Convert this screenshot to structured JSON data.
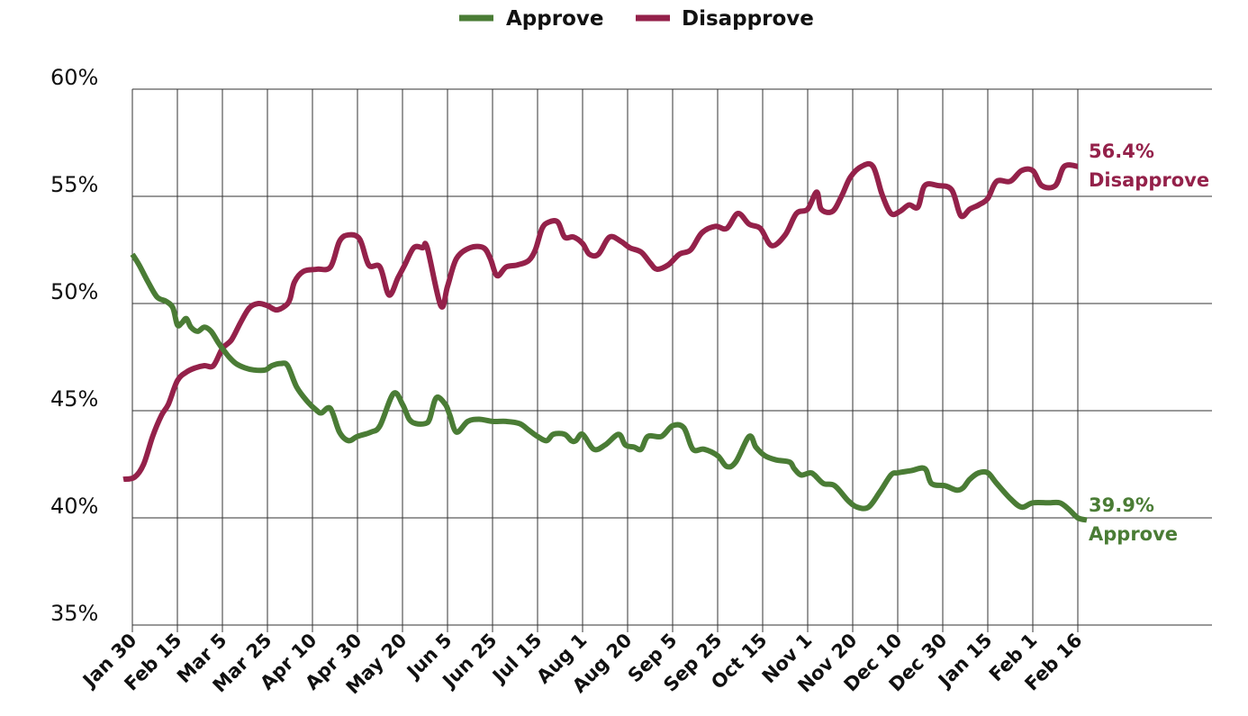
{
  "chart_data": {
    "type": "line",
    "title": "",
    "xlabel": "",
    "ylabel": "",
    "ylim": [
      35,
      60
    ],
    "yticks": [
      60,
      55,
      50,
      45,
      40,
      35
    ],
    "ytick_labels": [
      "60%",
      "55%",
      "50%",
      "45%",
      "40%",
      "35%"
    ],
    "categories": [
      "Jan 30",
      "Feb 15",
      "Mar 5",
      "Mar 25",
      "Apr 10",
      "Apr 30",
      "May 20",
      "Jun 5",
      "Jun 25",
      "Jul 15",
      "Aug 1",
      "Aug 20",
      "Sep 5",
      "Sep 25",
      "Oct 15",
      "Nov 1",
      "Nov 20",
      "Dec 10",
      "Dec 30",
      "Jan 15",
      "Feb 1",
      "Feb 16"
    ],
    "grid": true,
    "legend_position": "top-center",
    "series": [
      {
        "name": "Approve",
        "color": "#4a7c35",
        "end_value_label": "39.9%",
        "end_name_label": "Approve",
        "points": [
          [
            0,
            52.3
          ],
          [
            0.15,
            51.8
          ],
          [
            0.35,
            51.0
          ],
          [
            0.55,
            50.3
          ],
          [
            0.75,
            50.1
          ],
          [
            0.9,
            49.8
          ],
          [
            1.0,
            49.0
          ],
          [
            1.1,
            49.1
          ],
          [
            1.2,
            49.3
          ],
          [
            1.3,
            48.9
          ],
          [
            1.45,
            48.7
          ],
          [
            1.6,
            48.9
          ],
          [
            1.75,
            48.7
          ],
          [
            1.9,
            48.2
          ],
          [
            2.0,
            47.9
          ],
          [
            2.15,
            47.5
          ],
          [
            2.3,
            47.2
          ],
          [
            2.5,
            47.0
          ],
          [
            2.7,
            46.9
          ],
          [
            2.95,
            46.9
          ],
          [
            3.1,
            47.1
          ],
          [
            3.3,
            47.2
          ],
          [
            3.45,
            47.1
          ],
          [
            3.65,
            46.1
          ],
          [
            3.9,
            45.4
          ],
          [
            4.1,
            45.0
          ],
          [
            4.2,
            44.9
          ],
          [
            4.4,
            45.1
          ],
          [
            4.6,
            44.0
          ],
          [
            4.8,
            43.6
          ],
          [
            5.0,
            43.8
          ],
          [
            5.3,
            44.0
          ],
          [
            5.5,
            44.3
          ],
          [
            5.8,
            45.8
          ],
          [
            6.0,
            45.3
          ],
          [
            6.15,
            44.6
          ],
          [
            6.3,
            44.4
          ],
          [
            6.5,
            44.4
          ],
          [
            6.6,
            44.6
          ],
          [
            6.75,
            45.6
          ],
          [
            6.95,
            45.3
          ],
          [
            7.05,
            44.8
          ],
          [
            7.2,
            44.0
          ],
          [
            7.45,
            44.5
          ],
          [
            7.7,
            44.6
          ],
          [
            8.0,
            44.5
          ],
          [
            8.3,
            44.5
          ],
          [
            8.6,
            44.4
          ],
          [
            8.8,
            44.1
          ],
          [
            9.0,
            43.8
          ],
          [
            9.2,
            43.6
          ],
          [
            9.35,
            43.9
          ],
          [
            9.6,
            43.9
          ],
          [
            9.75,
            43.6
          ],
          [
            9.85,
            43.6
          ],
          [
            10.0,
            43.9
          ],
          [
            10.25,
            43.2
          ],
          [
            10.5,
            43.4
          ],
          [
            10.8,
            43.9
          ],
          [
            10.95,
            43.4
          ],
          [
            11.15,
            43.3
          ],
          [
            11.3,
            43.2
          ],
          [
            11.45,
            43.8
          ],
          [
            11.75,
            43.8
          ],
          [
            12.0,
            44.3
          ],
          [
            12.25,
            44.2
          ],
          [
            12.45,
            43.2
          ],
          [
            12.7,
            43.2
          ],
          [
            13.0,
            42.9
          ],
          [
            13.2,
            42.4
          ],
          [
            13.4,
            42.6
          ],
          [
            13.7,
            43.8
          ],
          [
            13.85,
            43.3
          ],
          [
            14.05,
            42.9
          ],
          [
            14.3,
            42.7
          ],
          [
            14.6,
            42.6
          ],
          [
            14.7,
            42.3
          ],
          [
            14.85,
            42.0
          ],
          [
            15.05,
            42.1
          ],
          [
            15.15,
            42.0
          ],
          [
            15.35,
            41.6
          ],
          [
            15.6,
            41.5
          ],
          [
            15.9,
            40.8
          ],
          [
            16.1,
            40.5
          ],
          [
            16.35,
            40.5
          ],
          [
            16.6,
            41.2
          ],
          [
            16.85,
            42.0
          ],
          [
            17.0,
            42.1
          ],
          [
            17.3,
            42.2
          ],
          [
            17.6,
            42.3
          ],
          [
            17.75,
            41.6
          ],
          [
            18.05,
            41.5
          ],
          [
            18.3,
            41.3
          ],
          [
            18.45,
            41.4
          ],
          [
            18.6,
            41.8
          ],
          [
            18.8,
            42.1
          ],
          [
            19.0,
            42.1
          ],
          [
            19.2,
            41.6
          ],
          [
            19.5,
            40.9
          ],
          [
            19.75,
            40.5
          ],
          [
            20.0,
            40.7
          ],
          [
            20.35,
            40.7
          ],
          [
            20.6,
            40.7
          ],
          [
            20.8,
            40.4
          ],
          [
            21.0,
            40.0
          ],
          [
            21.2,
            39.9
          ]
        ]
      },
      {
        "name": "Disapprove",
        "color": "#94214a",
        "end_value_label": "56.4%",
        "end_name_label": "Disapprove",
        "points": [
          [
            -0.2,
            41.8
          ],
          [
            0.05,
            41.9
          ],
          [
            0.25,
            42.5
          ],
          [
            0.45,
            43.8
          ],
          [
            0.65,
            44.8
          ],
          [
            0.8,
            45.3
          ],
          [
            1.0,
            46.4
          ],
          [
            1.2,
            46.8
          ],
          [
            1.4,
            47.0
          ],
          [
            1.6,
            47.1
          ],
          [
            1.8,
            47.1
          ],
          [
            2.0,
            47.9
          ],
          [
            2.2,
            48.3
          ],
          [
            2.4,
            49.1
          ],
          [
            2.6,
            49.8
          ],
          [
            2.8,
            50.0
          ],
          [
            3.0,
            49.9
          ],
          [
            3.2,
            49.7
          ],
          [
            3.4,
            49.9
          ],
          [
            3.5,
            50.2
          ],
          [
            3.6,
            51.0
          ],
          [
            3.8,
            51.5
          ],
          [
            4.1,
            51.6
          ],
          [
            4.4,
            51.7
          ],
          [
            4.6,
            52.9
          ],
          [
            4.8,
            53.2
          ],
          [
            5.05,
            53.0
          ],
          [
            5.25,
            51.8
          ],
          [
            5.5,
            51.7
          ],
          [
            5.7,
            50.4
          ],
          [
            5.9,
            51.2
          ],
          [
            6.05,
            51.8
          ],
          [
            6.25,
            52.6
          ],
          [
            6.45,
            52.6
          ],
          [
            6.55,
            52.6
          ],
          [
            6.85,
            49.9
          ],
          [
            7.0,
            50.8
          ],
          [
            7.2,
            52.1
          ],
          [
            7.5,
            52.6
          ],
          [
            7.8,
            52.6
          ],
          [
            7.95,
            52.1
          ],
          [
            8.1,
            51.3
          ],
          [
            8.3,
            51.7
          ],
          [
            8.55,
            51.8
          ],
          [
            8.8,
            52.0
          ],
          [
            8.95,
            52.5
          ],
          [
            9.1,
            53.5
          ],
          [
            9.25,
            53.8
          ],
          [
            9.45,
            53.8
          ],
          [
            9.6,
            53.1
          ],
          [
            9.8,
            53.1
          ],
          [
            10.0,
            52.8
          ],
          [
            10.15,
            52.3
          ],
          [
            10.35,
            52.3
          ],
          [
            10.6,
            53.1
          ],
          [
            10.85,
            52.9
          ],
          [
            11.05,
            52.6
          ],
          [
            11.3,
            52.4
          ],
          [
            11.5,
            51.9
          ],
          [
            11.65,
            51.6
          ],
          [
            11.9,
            51.8
          ],
          [
            12.15,
            52.3
          ],
          [
            12.4,
            52.5
          ],
          [
            12.65,
            53.3
          ],
          [
            12.95,
            53.6
          ],
          [
            13.2,
            53.5
          ],
          [
            13.45,
            54.2
          ],
          [
            13.7,
            53.7
          ],
          [
            13.95,
            53.5
          ],
          [
            14.2,
            52.7
          ],
          [
            14.5,
            53.2
          ],
          [
            14.75,
            54.2
          ],
          [
            15.0,
            54.4
          ],
          [
            15.2,
            55.2
          ],
          [
            15.3,
            54.4
          ],
          [
            15.55,
            54.3
          ],
          [
            15.75,
            55.0
          ],
          [
            15.95,
            55.9
          ],
          [
            16.2,
            56.4
          ],
          [
            16.45,
            56.4
          ],
          [
            16.65,
            55.1
          ],
          [
            16.85,
            54.2
          ],
          [
            17.05,
            54.3
          ],
          [
            17.25,
            54.6
          ],
          [
            17.45,
            54.5
          ],
          [
            17.6,
            55.5
          ],
          [
            17.9,
            55.5
          ],
          [
            18.2,
            55.3
          ],
          [
            18.4,
            54.1
          ],
          [
            18.6,
            54.4
          ],
          [
            18.8,
            54.6
          ],
          [
            19.0,
            54.9
          ],
          [
            19.2,
            55.7
          ],
          [
            19.5,
            55.7
          ],
          [
            19.75,
            56.2
          ],
          [
            20.0,
            56.2
          ],
          [
            20.2,
            55.5
          ],
          [
            20.5,
            55.5
          ],
          [
            20.7,
            56.4
          ],
          [
            21.0,
            56.4
          ]
        ]
      }
    ]
  }
}
